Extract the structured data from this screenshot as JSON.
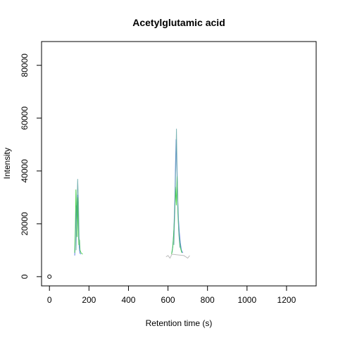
{
  "chart_data": {
    "type": "line",
    "title": "Acetylglutamic acid",
    "xlabel": "Retention time (s)",
    "ylabel": "Intensity",
    "xlim": [
      -40,
      1350
    ],
    "ylim": [
      -3500,
      89000
    ],
    "x_ticks": [
      0,
      200,
      400,
      600,
      800,
      1000,
      1200
    ],
    "y_ticks": [
      0,
      20000,
      40000,
      60000,
      80000
    ],
    "grid": false,
    "legend": "none",
    "colors": {
      "blue": "#4169e1",
      "green": "#32cd32",
      "teal": "#66a8a8",
      "gray": "#b0b0b0"
    },
    "series": [
      {
        "color": "blue",
        "x": [
          128,
          130,
          133,
          136,
          139,
          142,
          145,
          148,
          151,
          154,
          158
        ],
        "y": [
          8000,
          12000,
          19000,
          27000,
          22000,
          31000,
          24000,
          15000,
          11000,
          9000,
          8500
        ]
      },
      {
        "color": "green",
        "x": [
          128,
          131,
          134,
          137,
          140,
          143,
          146,
          149,
          152,
          155,
          160,
          168
        ],
        "y": [
          9000,
          18000,
          33000,
          24000,
          15000,
          30000,
          20000,
          12000,
          14000,
          10000,
          9000,
          8500
        ]
      },
      {
        "color": "teal",
        "x": [
          135,
          139,
          143,
          147,
          150,
          154
        ],
        "y": [
          10000,
          26000,
          37000,
          28000,
          15000,
          10000
        ]
      },
      {
        "color": "blue",
        "x": [
          620,
          625,
          630,
          635,
          638,
          641,
          644,
          647,
          650,
          653,
          657,
          662,
          668,
          675
        ],
        "y": [
          9000,
          12000,
          18000,
          30000,
          42000,
          52000,
          44000,
          36000,
          28000,
          22000,
          17000,
          13000,
          10000,
          9000
        ]
      },
      {
        "color": "green",
        "x": [
          618,
          624,
          629,
          634,
          638,
          642,
          646,
          650,
          654,
          658,
          663,
          670
        ],
        "y": [
          8500,
          11000,
          16000,
          24000,
          34000,
          27000,
          38000,
          24000,
          18000,
          14000,
          11000,
          9000
        ]
      },
      {
        "color": "teal",
        "x": [
          630,
          636,
          640,
          643,
          646,
          650,
          655,
          660
        ],
        "y": [
          12000,
          30000,
          45000,
          56000,
          40000,
          27000,
          16000,
          11000
        ]
      },
      {
        "color": "gray",
        "x": [
          590,
          600,
          610,
          620,
          680,
          690,
          700,
          710
        ],
        "y": [
          7500,
          8000,
          7000,
          8500,
          8000,
          7500,
          7000,
          8000
        ]
      }
    ],
    "points": [
      {
        "x": 0,
        "y": 0
      }
    ]
  }
}
